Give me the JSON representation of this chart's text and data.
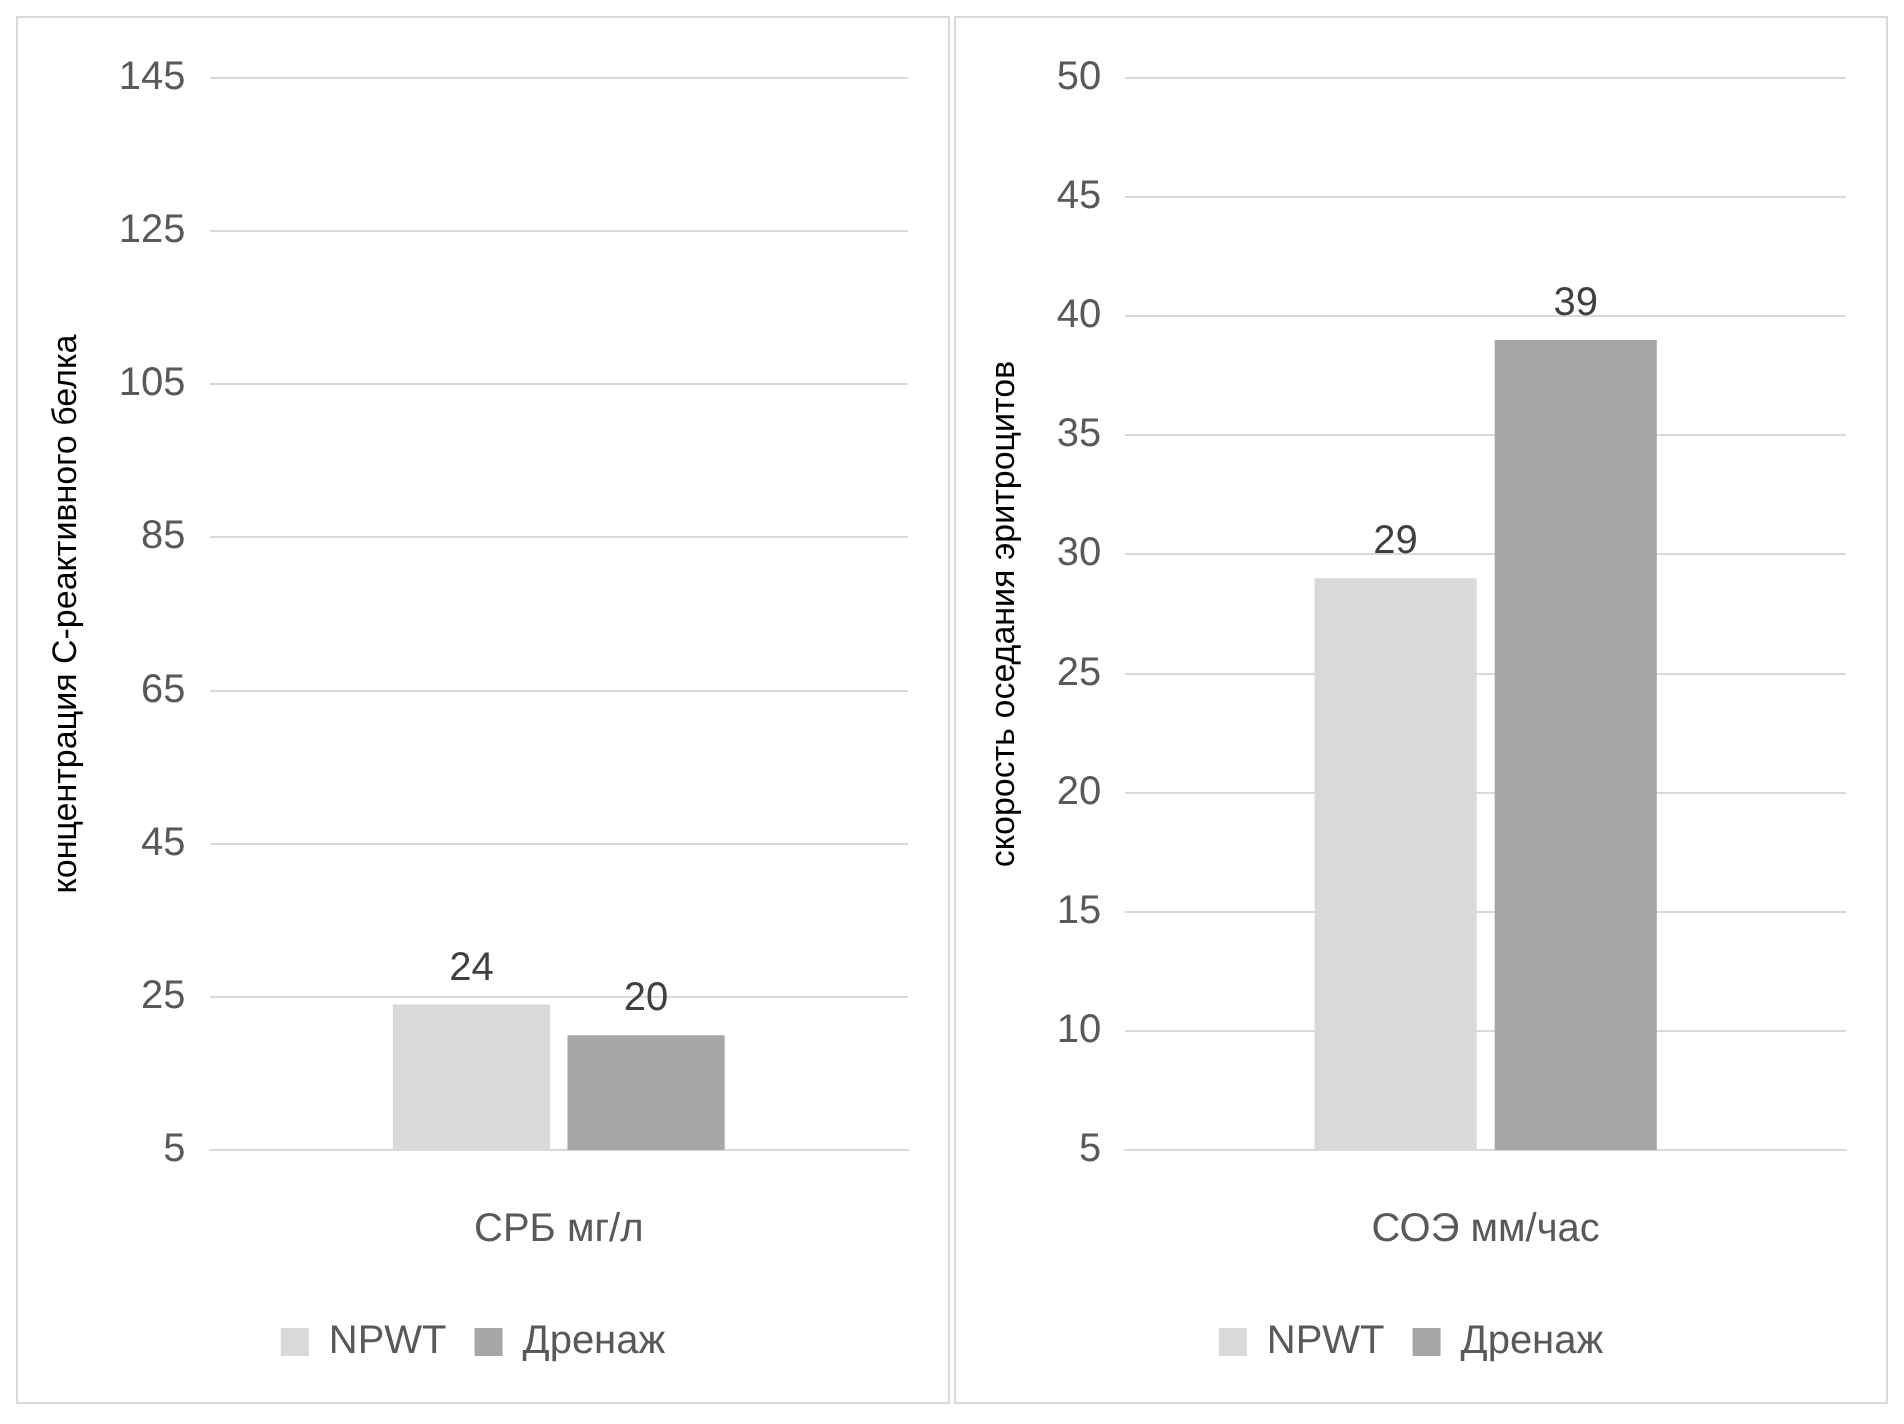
{
  "chart_data": [
    {
      "type": "bar",
      "ylabel": "концентрация С-реактивного белка",
      "categories": [
        "СРБ мг/л"
      ],
      "series": [
        {
          "name": "NPWT",
          "color": "#d9d9d9",
          "values": [
            24
          ]
        },
        {
          "name": "Дренаж",
          "color": "#a6a6a6",
          "values": [
            20
          ]
        }
      ],
      "ylim": [
        5,
        145
      ],
      "yticks": [
        5,
        25,
        45,
        65,
        85,
        105,
        125,
        145
      ],
      "grid": "y",
      "legend": "bottom",
      "data_labels": true
    },
    {
      "type": "bar",
      "ylabel": "скорость оседания эритроцитов",
      "categories": [
        "СОЭ мм/час"
      ],
      "series": [
        {
          "name": "NPWT",
          "color": "#d9d9d9",
          "values": [
            29
          ]
        },
        {
          "name": "Дренаж",
          "color": "#a6a6a6",
          "values": [
            39
          ]
        }
      ],
      "ylim": [
        5,
        50
      ],
      "yticks": [
        5,
        10,
        15,
        20,
        25,
        30,
        35,
        40,
        45,
        50
      ],
      "grid": "y",
      "legend": "bottom",
      "data_labels": true
    }
  ]
}
